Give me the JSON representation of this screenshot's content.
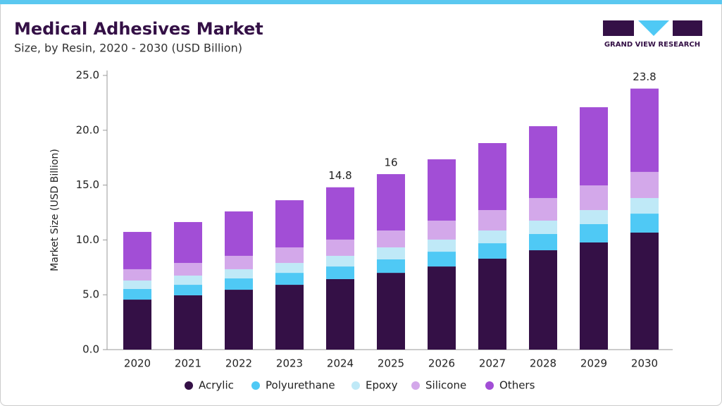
{
  "chart_data": {
    "type": "stacked_bar",
    "title": "Medical Adhesives Market",
    "subtitle": "Size, by Resin, 2020 - 2030 (USD Billion)",
    "brand": "GRAND VIEW RESEARCH",
    "y_label": "Market Size (USD Billion)",
    "categories": [
      "2020",
      "2021",
      "2022",
      "2023",
      "2024",
      "2025",
      "2026",
      "2027",
      "2028",
      "2029",
      "2030"
    ],
    "series": [
      {
        "name": "Acrylic",
        "color": "#341046",
        "values": [
          4.56,
          4.95,
          5.46,
          5.91,
          6.43,
          7.0,
          7.58,
          8.29,
          9.06,
          9.77,
          10.67
        ]
      },
      {
        "name": "Polyurethane",
        "color": "#4fc9f5",
        "values": [
          0.97,
          0.96,
          1.03,
          1.09,
          1.15,
          1.23,
          1.35,
          1.41,
          1.48,
          1.67,
          1.73
        ]
      },
      {
        "name": "Epoxy",
        "color": "#bfe9f7",
        "values": [
          0.77,
          0.84,
          0.84,
          0.9,
          0.97,
          1.09,
          1.1,
          1.16,
          1.22,
          1.28,
          1.42
        ]
      },
      {
        "name": "Silicone",
        "color": "#d3a8ea",
        "values": [
          1.03,
          1.15,
          1.22,
          1.42,
          1.48,
          1.54,
          1.73,
          1.86,
          2.06,
          2.25,
          2.38
        ]
      },
      {
        "name": "Others",
        "color": "#a24ed6",
        "values": [
          3.4,
          3.73,
          4.05,
          4.3,
          4.77,
          5.14,
          5.59,
          6.11,
          6.55,
          7.13,
          7.6
        ]
      }
    ],
    "totals": [
      null,
      null,
      null,
      null,
      14.8,
      16.0,
      null,
      null,
      null,
      null,
      23.8
    ],
    "ylim": [
      0,
      25
    ],
    "yticks": [
      {
        "value": 0,
        "label": "0.0"
      },
      {
        "value": 5,
        "label": "5.0"
      },
      {
        "value": 10,
        "label": "10.0"
      },
      {
        "value": 15,
        "label": "15.0"
      },
      {
        "value": 20,
        "label": "20.0"
      },
      {
        "value": 25,
        "label": "25.0"
      }
    ],
    "legend": "bottom"
  }
}
